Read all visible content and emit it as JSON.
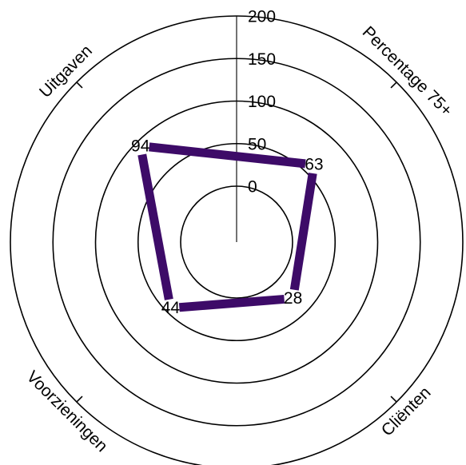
{
  "chart_data": {
    "type": "radar",
    "title": "",
    "axes": [
      "Percentage 75+",
      "Cliënten",
      "Voorzieningen",
      "Uitgaven"
    ],
    "series": [
      {
        "values": [
          63,
          28,
          44,
          94
        ],
        "color": "#3d0b68"
      }
    ],
    "radial_ticks": [
      0,
      50,
      100,
      150,
      200
    ],
    "rlim": [
      0,
      200
    ],
    "grid": true,
    "legend": "none"
  }
}
